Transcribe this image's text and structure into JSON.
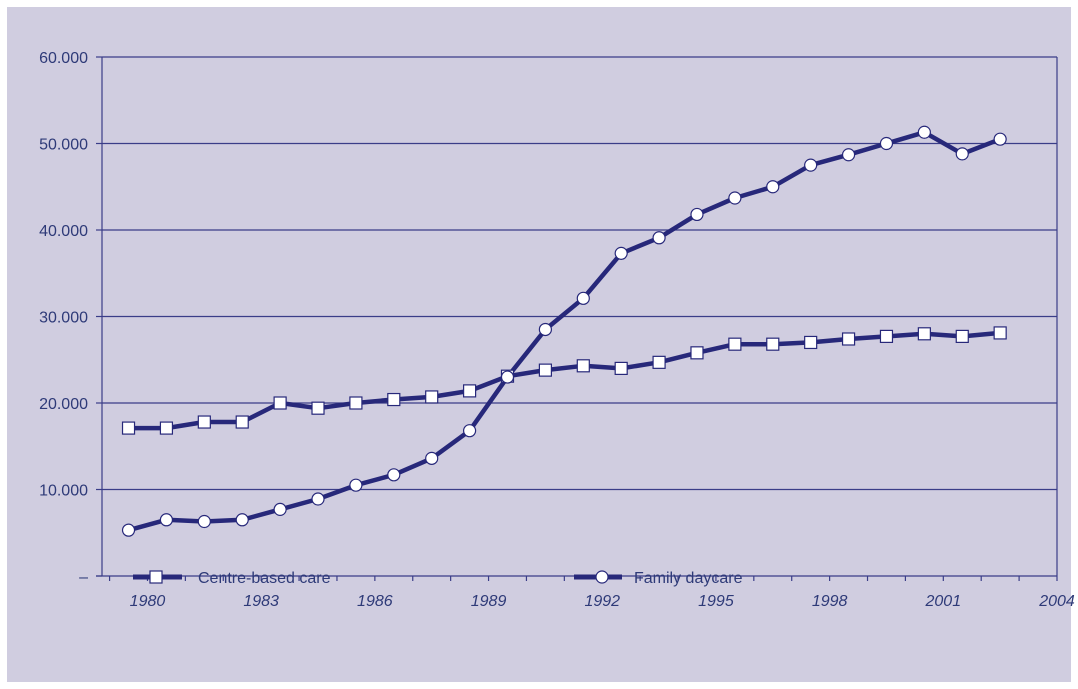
{
  "chart_data": {
    "type": "line",
    "title": "",
    "xlabel": "",
    "ylabel": "",
    "x": [
      1979.5,
      1980.5,
      1981.5,
      1982.5,
      1983.5,
      1984.5,
      1985.5,
      1986.5,
      1987.5,
      1988.5,
      1989.5,
      1990.5,
      1991.5,
      1992.5,
      1993.5,
      1994.5,
      1995.5,
      1996.5,
      1997.5,
      1998.5,
      1999.5,
      2000.5,
      2001.5,
      2002.5
    ],
    "xlim": [
      1978.8,
      2004
    ],
    "ylim": [
      0,
      60000
    ],
    "x_ticks": [
      1980,
      1983,
      1986,
      1989,
      1992,
      1995,
      1998,
      2001,
      2004
    ],
    "x_tick_labels": [
      "1980",
      "1983",
      "1986",
      "1989",
      "1992",
      "1995",
      "1998",
      "2001",
      "2004"
    ],
    "y_ticks": [
      0,
      10000,
      20000,
      30000,
      40000,
      50000,
      60000
    ],
    "y_tick_labels": [
      "–",
      "10.000",
      "20.000",
      "30.000",
      "40.000",
      "50.000",
      "60.000"
    ],
    "grid": "horizontal",
    "legend_position": "bottom",
    "series": [
      {
        "name": "Centre-based care",
        "marker": "square",
        "values": [
          17100,
          17100,
          17800,
          17800,
          20000,
          19400,
          20000,
          20400,
          20700,
          21400,
          23100,
          23800,
          24300,
          24000,
          24700,
          25800,
          26800,
          26800,
          27000,
          27400,
          27700,
          28000,
          27700,
          28100
        ]
      },
      {
        "name": "Family daycare",
        "marker": "circle",
        "values": [
          5300,
          6500,
          6300,
          6500,
          7700,
          8900,
          10500,
          11700,
          13600,
          16800,
          23000,
          28500,
          32100,
          37300,
          39100,
          41800,
          43700,
          45000,
          47500,
          48700,
          50000,
          51300,
          48800,
          50500
        ]
      }
    ]
  },
  "colors": {
    "background": "#d0cde0",
    "line": "#27287a",
    "grid": "#3a3d88",
    "marker_fill": "#ffffff"
  }
}
